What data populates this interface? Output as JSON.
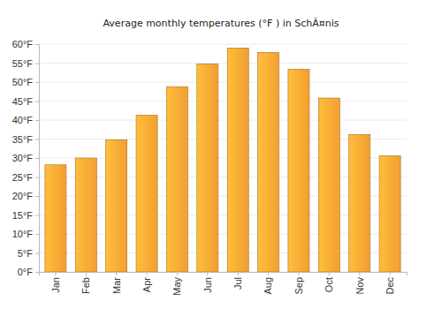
{
  "chart_data": {
    "type": "bar",
    "title": "Average monthly temperatures (°F ) in SchÃ¤nis",
    "categories": [
      "Jan",
      "Feb",
      "Mar",
      "Apr",
      "May",
      "Jun",
      "Jul",
      "Aug",
      "Sep",
      "Oct",
      "Nov",
      "Dec"
    ],
    "values": [
      28.2,
      30.0,
      34.8,
      41.3,
      48.8,
      54.8,
      59.0,
      57.8,
      53.4,
      45.8,
      36.2,
      30.6
    ],
    "color": "#ffa834",
    "ylim": [
      0,
      60
    ],
    "yticks": [
      {
        "value": 0,
        "label": "0°F"
      },
      {
        "value": 5,
        "label": "5°F"
      },
      {
        "value": 10,
        "label": "10°F"
      },
      {
        "value": 15,
        "label": "15°F"
      },
      {
        "value": 20,
        "label": "20°F"
      },
      {
        "value": 25,
        "label": "25°F"
      },
      {
        "value": 30,
        "label": "30°F"
      },
      {
        "value": 35,
        "label": "35°F"
      },
      {
        "value": 40,
        "label": "40°F"
      },
      {
        "value": 45,
        "label": "45°F"
      },
      {
        "value": 50,
        "label": "50°F"
      },
      {
        "value": 55,
        "label": "55°F"
      },
      {
        "value": 60,
        "label": "60°F"
      }
    ],
    "grid": true
  }
}
